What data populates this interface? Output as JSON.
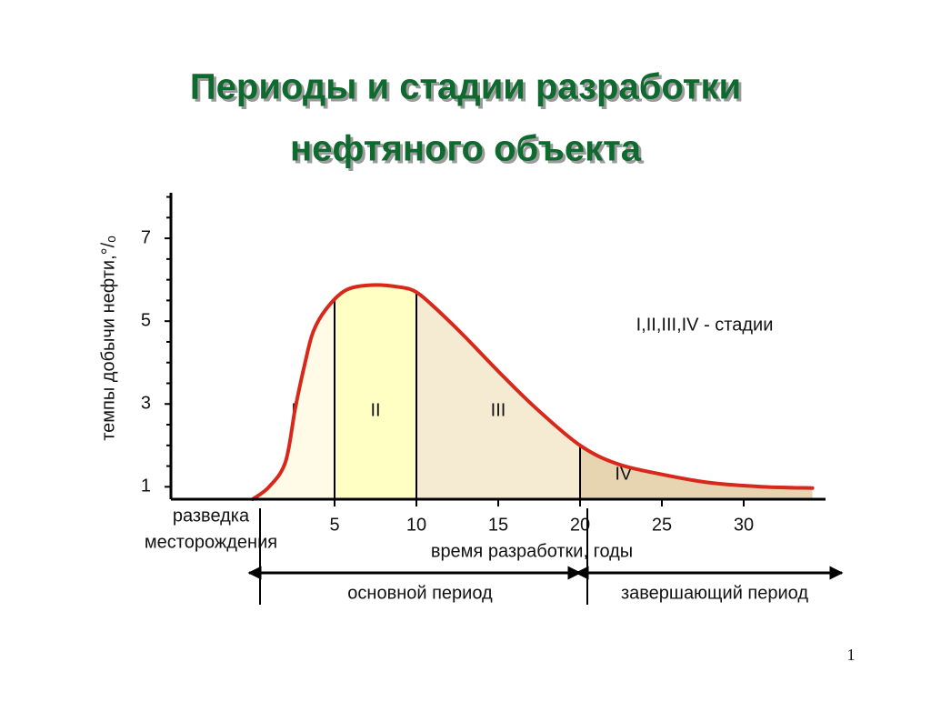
{
  "title_lines": [
    "Периоды и стадии разработки",
    "нефтяного объекта"
  ],
  "page_number": "1",
  "chart_data": {
    "type": "area",
    "ylabel": "темпы добычи нефти,°/ₒ",
    "xlabel": "время разработки, годы",
    "exploration_label": [
      "разведка",
      "месторождения"
    ],
    "note": "I,II,III,IV - стадии",
    "color": "#d8281c",
    "x": [
      0,
      1,
      2,
      2.6,
      3.2,
      3.7,
      4.5,
      5.7,
      7.3,
      9,
      10,
      11.2,
      12.9,
      15.1,
      17.3,
      20,
      22.3,
      25,
      27.9,
      31.2,
      34.2
    ],
    "values": [
      0.7,
      1,
      1.6,
      2.9,
      4,
      4.75,
      5.3,
      5.75,
      5.87,
      5.82,
      5.7,
      5.3,
      4.65,
      3.75,
      2.9,
      2,
      1.55,
      1.3,
      1.1,
      1,
      0.97
    ],
    "xlim": [
      -5,
      35
    ],
    "ylim": [
      0.7,
      8.1
    ],
    "xticks": [
      5,
      10,
      15,
      20,
      25,
      30
    ],
    "yticks": [
      1,
      3,
      5,
      7
    ],
    "yminorticks": [
      1.5,
      2,
      2.5,
      3.5,
      4,
      4.5,
      5.5,
      6,
      6.5,
      7.5,
      8
    ],
    "stages": [
      {
        "label": "I",
        "from": 0,
        "color": "#fffbe6"
      },
      {
        "label": "II",
        "from": 5,
        "color": "#ffffc4"
      },
      {
        "label": "III",
        "from": 10,
        "color": "#f5ebd3"
      },
      {
        "label": "IV",
        "from": 20,
        "color": "#e6d5b0"
      }
    ],
    "periods": [
      {
        "label": "основной период",
        "from": 0,
        "to": 20
      },
      {
        "label": "завершающий период",
        "from": 20,
        "to": 36
      }
    ]
  }
}
